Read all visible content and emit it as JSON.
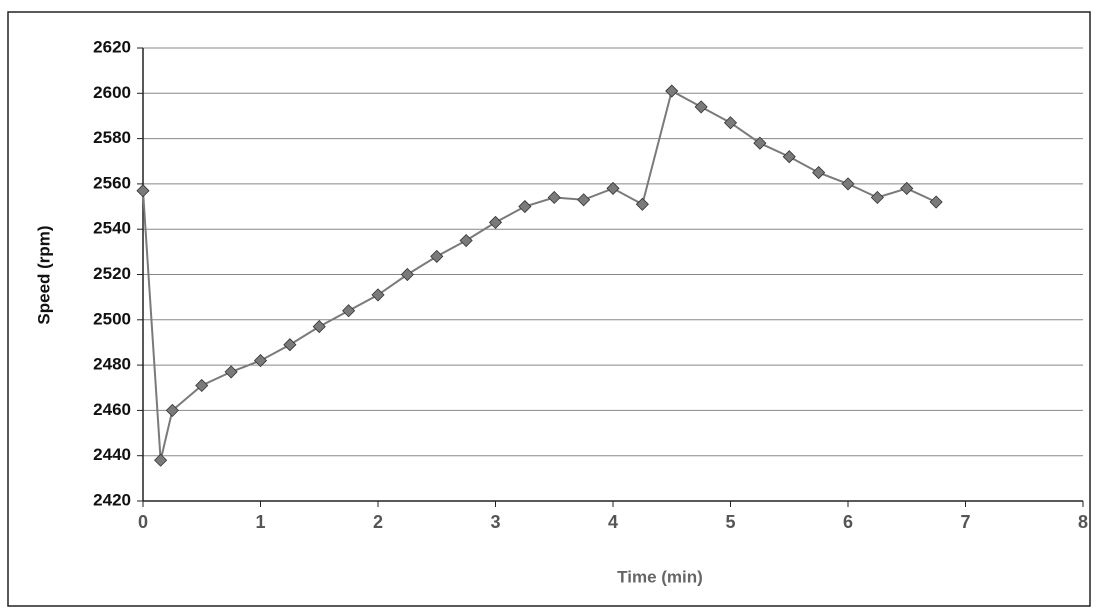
{
  "chart_data": {
    "type": "line",
    "x_label": "Time (min)",
    "y_label": "Speed (rpm)",
    "x": [
      0,
      0.15,
      0.25,
      0.5,
      0.75,
      1,
      1.25,
      1.5,
      1.75,
      2,
      2.25,
      2.5,
      2.75,
      3,
      3.25,
      3.5,
      3.75,
      4,
      4.25,
      4.5,
      4.75,
      5,
      5.25,
      5.5,
      5.75,
      6,
      6.25,
      6.5,
      6.75
    ],
    "series": [
      {
        "color": "#7a7a7a",
        "values": [
          2557,
          2438,
          2460,
          2471,
          2477,
          2482,
          2489,
          2497,
          2504,
          2511,
          2520,
          2528,
          2535,
          2543,
          2550,
          2554,
          2553,
          2558,
          2551,
          2601,
          2594,
          2587,
          2578,
          2572,
          2565,
          2560,
          2554,
          2558,
          2552
        ]
      }
    ],
    "xlim": [
      0,
      8
    ],
    "xticks": [
      0,
      1,
      2,
      3,
      4,
      5,
      6,
      7,
      8
    ],
    "ylim": [
      2420,
      2620
    ],
    "yticks": [
      2420,
      2440,
      2460,
      2480,
      2500,
      2520,
      2540,
      2560,
      2580,
      2600,
      2620
    ],
    "grid": true
  }
}
